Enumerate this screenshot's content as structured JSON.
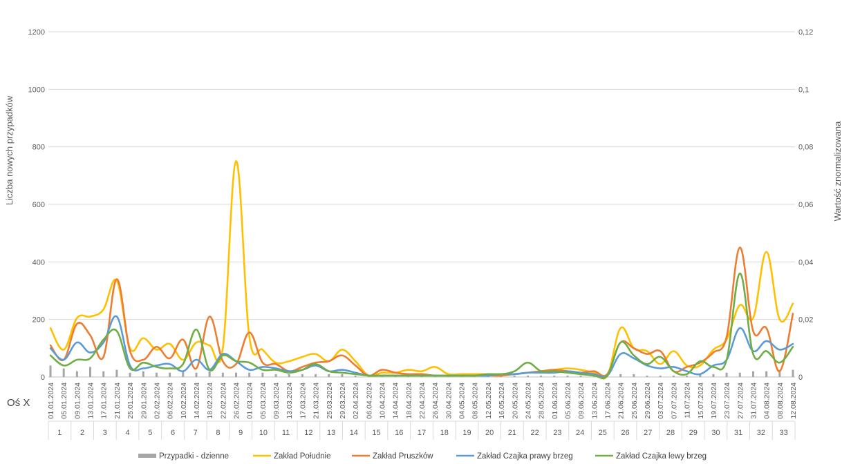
{
  "chart_data": {
    "type": "line",
    "xlabel": "Oś X",
    "ylabel": "Liczba nowych przypadków",
    "y2label": "Wartość znormalizowana",
    "ylim": [
      0,
      1300
    ],
    "y2lim": [
      0,
      0.13
    ],
    "yticks": [
      "0",
      "200",
      "400",
      "600",
      "800",
      "1000",
      "1200"
    ],
    "y2ticks": [
      "0",
      "0,02",
      "0,04",
      "0,06",
      "0,08",
      "0,1",
      "0,12"
    ],
    "grid": true,
    "legend_position": "bottom",
    "x_dates": [
      "01.01.2024",
      "05.01.2024",
      "09.01.2024",
      "13.01.2024",
      "17.01.2024",
      "21.01.2024",
      "25.01.2024",
      "29.01.2024",
      "02.02.2024",
      "06.02.2024",
      "10.02.2024",
      "14.02.2024",
      "18.02.2024",
      "22.02.2024",
      "26.02.2024",
      "01.03.2024",
      "05.03.2024",
      "09.03.2024",
      "13.03.2024",
      "17.03.2024",
      "21.03.2024",
      "25.03.2024",
      "29.03.2024",
      "02.04.2024",
      "06.04.2024",
      "10.04.2024",
      "14.04.2024",
      "18.04.2024",
      "22.04.2024",
      "26.04.2024",
      "30.04.2024",
      "04.05.2024",
      "08.05.2024",
      "12.05.2024",
      "16.05.2024",
      "20.05.2024",
      "24.05.2024",
      "28.05.2024",
      "01.06.2024",
      "05.06.2024",
      "09.06.2024",
      "13.06.2024",
      "17.06.2024",
      "21.06.2024",
      "25.06.2024",
      "29.06.2024",
      "03.07.2024",
      "07.07.2024",
      "11.07.2024",
      "15.07.2024",
      "19.07.2024",
      "23.07.2024",
      "27.07.2024",
      "31.07.2024",
      "04.08.2024",
      "08.08.2024",
      "12.08.2024"
    ],
    "weeks": [
      "1",
      "2",
      "3",
      "4",
      "5",
      "6",
      "7",
      "8",
      "9",
      "10",
      "11",
      "12",
      "13",
      "14",
      "15",
      "16",
      "17",
      "18",
      "19",
      "20",
      "21",
      "22",
      "23",
      "24",
      "25",
      "26",
      "27",
      "28",
      "29",
      "30",
      "31",
      "32",
      "33"
    ],
    "bars": {
      "name": "Przypadki - dzienne",
      "color": "#a6a6a6",
      "values": [
        40,
        30,
        20,
        35,
        20,
        25,
        15,
        20,
        15,
        15,
        20,
        15,
        20,
        15,
        15,
        15,
        15,
        10,
        10,
        10,
        10,
        10,
        10,
        5,
        5,
        5,
        5,
        5,
        5,
        5,
        5,
        5,
        5,
        5,
        5,
        5,
        5,
        5,
        5,
        5,
        5,
        5,
        10,
        10,
        10,
        5,
        5,
        5,
        5,
        10,
        10,
        15,
        15,
        20,
        20,
        25,
        25
      ]
    },
    "series": [
      {
        "name": "Zakład Południe",
        "color": "#ffc000",
        "points": [
          [
            0,
            170
          ],
          [
            1,
            95
          ],
          [
            2,
            205
          ],
          [
            3,
            210
          ],
          [
            4,
            235
          ],
          [
            5,
            335
          ],
          [
            6,
            100
          ],
          [
            7,
            135
          ],
          [
            8,
            95
          ],
          [
            9,
            115
          ],
          [
            10,
            60
          ],
          [
            11,
            120
          ],
          [
            12,
            110
          ],
          [
            13,
            100
          ],
          [
            14,
            750
          ],
          [
            15,
            140
          ],
          [
            16,
            95
          ],
          [
            17,
            50
          ],
          [
            18,
            55
          ],
          [
            19,
            70
          ],
          [
            20,
            80
          ],
          [
            21,
            55
          ],
          [
            22,
            95
          ],
          [
            23,
            55
          ],
          [
            24,
            5
          ],
          [
            25,
            15
          ],
          [
            26,
            15
          ],
          [
            27,
            25
          ],
          [
            28,
            20
          ],
          [
            29,
            35
          ],
          [
            30,
            10
          ],
          [
            31,
            10
          ],
          [
            32,
            10
          ],
          [
            33,
            10
          ],
          [
            34,
            10
          ],
          [
            35,
            10
          ],
          [
            36,
            15
          ],
          [
            37,
            20
          ],
          [
            38,
            25
          ],
          [
            39,
            30
          ],
          [
            40,
            25
          ],
          [
            41,
            15
          ],
          [
            42,
            5
          ],
          [
            43,
            170
          ],
          [
            44,
            100
          ],
          [
            45,
            90
          ],
          [
            46,
            45
          ],
          [
            47,
            90
          ],
          [
            48,
            40
          ],
          [
            49,
            40
          ],
          [
            50,
            95
          ],
          [
            51,
            130
          ],
          [
            52,
            250
          ],
          [
            53,
            205
          ],
          [
            54,
            435
          ],
          [
            55,
            200
          ],
          [
            56,
            255
          ]
        ]
      },
      {
        "name": "Zakład Pruszków",
        "color": "#ed7d31",
        "points": [
          [
            0,
            110
          ],
          [
            1,
            60
          ],
          [
            2,
            185
          ],
          [
            3,
            145
          ],
          [
            4,
            70
          ],
          [
            5,
            340
          ],
          [
            6,
            90
          ],
          [
            7,
            60
          ],
          [
            8,
            105
          ],
          [
            9,
            65
          ],
          [
            10,
            130
          ],
          [
            11,
            30
          ],
          [
            12,
            210
          ],
          [
            13,
            55
          ],
          [
            14,
            45
          ],
          [
            15,
            155
          ],
          [
            16,
            50
          ],
          [
            17,
            45
          ],
          [
            18,
            20
          ],
          [
            19,
            35
          ],
          [
            20,
            50
          ],
          [
            21,
            55
          ],
          [
            22,
            75
          ],
          [
            23,
            40
          ],
          [
            24,
            5
          ],
          [
            25,
            25
          ],
          [
            26,
            15
          ],
          [
            27,
            10
          ],
          [
            28,
            10
          ],
          [
            29,
            5
          ],
          [
            30,
            5
          ],
          [
            31,
            5
          ],
          [
            32,
            5
          ],
          [
            33,
            5
          ],
          [
            34,
            5
          ],
          [
            35,
            10
          ],
          [
            36,
            15
          ],
          [
            37,
            20
          ],
          [
            38,
            25
          ],
          [
            39,
            20
          ],
          [
            40,
            15
          ],
          [
            41,
            20
          ],
          [
            42,
            10
          ],
          [
            43,
            120
          ],
          [
            44,
            100
          ],
          [
            45,
            80
          ],
          [
            46,
            90
          ],
          [
            47,
            20
          ],
          [
            48,
            35
          ],
          [
            49,
            50
          ],
          [
            50,
            85
          ],
          [
            51,
            140
          ],
          [
            52,
            450
          ],
          [
            53,
            160
          ],
          [
            54,
            170
          ],
          [
            55,
            20
          ],
          [
            56,
            220
          ]
        ]
      },
      {
        "name": "Zakład Czajka prawy brzeg",
        "color": "#5b9bd5",
        "points": [
          [
            0,
            100
          ],
          [
            1,
            60
          ],
          [
            2,
            120
          ],
          [
            3,
            85
          ],
          [
            4,
            120
          ],
          [
            5,
            210
          ],
          [
            6,
            40
          ],
          [
            7,
            30
          ],
          [
            8,
            40
          ],
          [
            9,
            45
          ],
          [
            10,
            20
          ],
          [
            11,
            60
          ],
          [
            12,
            25
          ],
          [
            13,
            80
          ],
          [
            14,
            55
          ],
          [
            15,
            25
          ],
          [
            16,
            35
          ],
          [
            17,
            30
          ],
          [
            18,
            20
          ],
          [
            19,
            25
          ],
          [
            20,
            40
          ],
          [
            21,
            20
          ],
          [
            22,
            25
          ],
          [
            23,
            15
          ],
          [
            24,
            5
          ],
          [
            25,
            5
          ],
          [
            26,
            5
          ],
          [
            27,
            5
          ],
          [
            28,
            5
          ],
          [
            29,
            5
          ],
          [
            30,
            5
          ],
          [
            31,
            5
          ],
          [
            32,
            5
          ],
          [
            33,
            5
          ],
          [
            34,
            10
          ],
          [
            35,
            10
          ],
          [
            36,
            15
          ],
          [
            37,
            15
          ],
          [
            38,
            15
          ],
          [
            39,
            20
          ],
          [
            40,
            15
          ],
          [
            41,
            10
          ],
          [
            42,
            5
          ],
          [
            43,
            80
          ],
          [
            44,
            65
          ],
          [
            45,
            40
          ],
          [
            46,
            30
          ],
          [
            47,
            35
          ],
          [
            48,
            20
          ],
          [
            49,
            10
          ],
          [
            50,
            40
          ],
          [
            51,
            60
          ],
          [
            52,
            170
          ],
          [
            53,
            90
          ],
          [
            54,
            125
          ],
          [
            55,
            95
          ],
          [
            56,
            115
          ]
        ]
      },
      {
        "name": "Zakład Czajka lewy brzeg",
        "color": "#70ad47",
        "points": [
          [
            0,
            75
          ],
          [
            1,
            40
          ],
          [
            2,
            60
          ],
          [
            3,
            65
          ],
          [
            4,
            130
          ],
          [
            5,
            160
          ],
          [
            6,
            30
          ],
          [
            7,
            50
          ],
          [
            8,
            35
          ],
          [
            9,
            30
          ],
          [
            10,
            45
          ],
          [
            11,
            165
          ],
          [
            12,
            25
          ],
          [
            13,
            75
          ],
          [
            14,
            55
          ],
          [
            15,
            50
          ],
          [
            16,
            25
          ],
          [
            17,
            25
          ],
          [
            18,
            15
          ],
          [
            19,
            25
          ],
          [
            20,
            45
          ],
          [
            21,
            20
          ],
          [
            22,
            15
          ],
          [
            23,
            10
          ],
          [
            24,
            5
          ],
          [
            25,
            5
          ],
          [
            26,
            5
          ],
          [
            27,
            5
          ],
          [
            28,
            5
          ],
          [
            29,
            5
          ],
          [
            30,
            5
          ],
          [
            31,
            5
          ],
          [
            32,
            5
          ],
          [
            33,
            10
          ],
          [
            34,
            10
          ],
          [
            35,
            20
          ],
          [
            36,
            50
          ],
          [
            37,
            20
          ],
          [
            38,
            20
          ],
          [
            39,
            15
          ],
          [
            40,
            10
          ],
          [
            41,
            5
          ],
          [
            42,
            5
          ],
          [
            43,
            120
          ],
          [
            44,
            75
          ],
          [
            45,
            45
          ],
          [
            46,
            70
          ],
          [
            47,
            20
          ],
          [
            48,
            10
          ],
          [
            49,
            55
          ],
          [
            50,
            35
          ],
          [
            51,
            60
          ],
          [
            52,
            360
          ],
          [
            53,
            80
          ],
          [
            54,
            90
          ],
          [
            55,
            50
          ],
          [
            56,
            105
          ]
        ]
      }
    ]
  }
}
